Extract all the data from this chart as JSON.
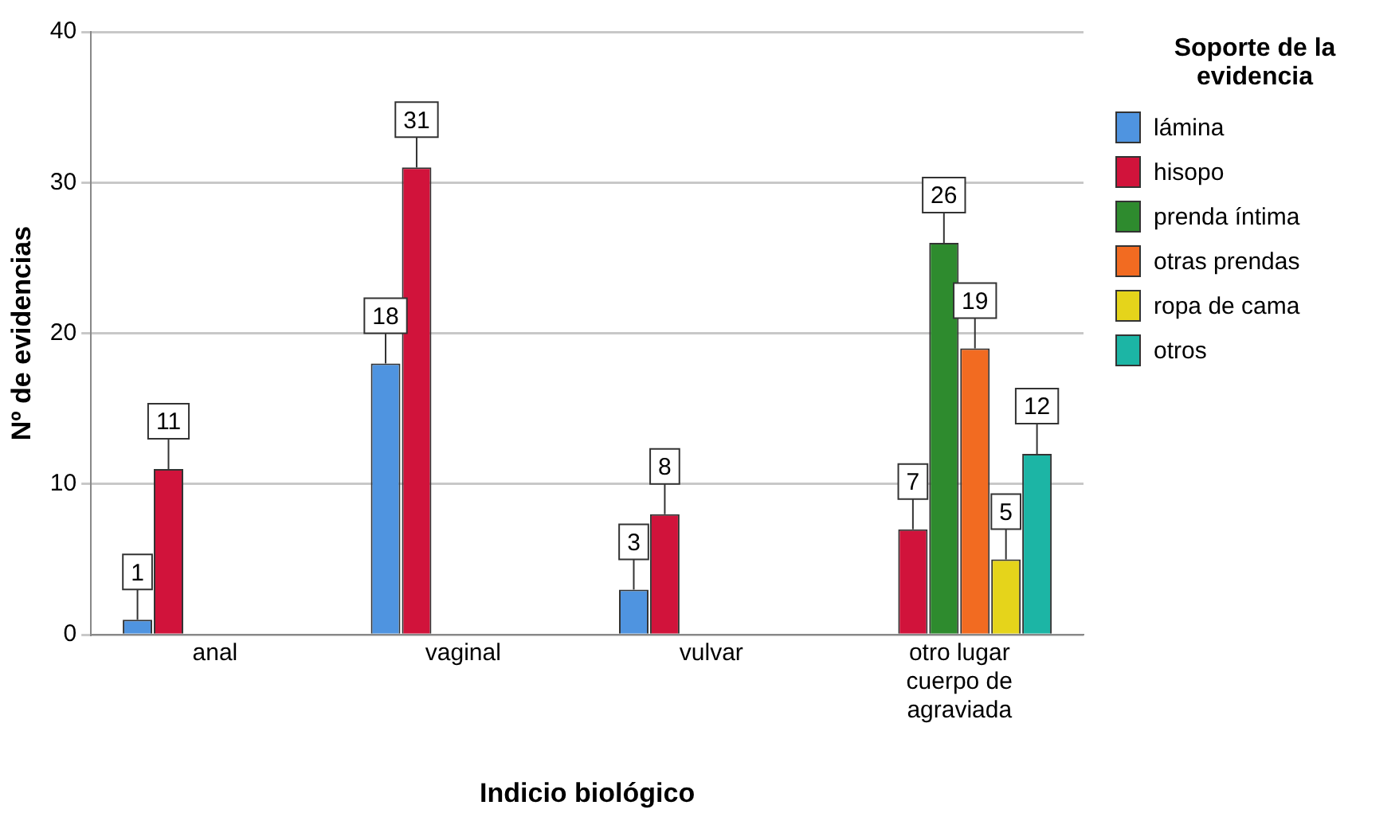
{
  "chart_data": {
    "type": "bar",
    "xlabel": "Indicio biológico",
    "ylabel": "Nº de evidencias",
    "legend_title": "Soporte de la evidencia",
    "categories": [
      "anal",
      "vaginal",
      "vulvar",
      "otro lugar cuerpo de agraviada"
    ],
    "series": [
      {
        "name": "lámina",
        "color": "#4f94e0",
        "values": [
          1,
          18,
          3,
          null
        ]
      },
      {
        "name": "hisopo",
        "color": "#d1133b",
        "values": [
          11,
          31,
          8,
          7
        ]
      },
      {
        "name": "prenda íntima",
        "color": "#2e8b2e",
        "values": [
          null,
          null,
          null,
          26
        ]
      },
      {
        "name": "otras prendas",
        "color": "#f26b21",
        "values": [
          null,
          null,
          null,
          19
        ]
      },
      {
        "name": "ropa de cama",
        "color": "#e5d41b",
        "values": [
          null,
          null,
          null,
          5
        ]
      },
      {
        "name": "otros",
        "color": "#1cb5a5",
        "values": [
          null,
          null,
          null,
          12
        ]
      }
    ],
    "ylim": [
      0,
      40
    ],
    "yticks": [
      0,
      10,
      20,
      30,
      40
    ],
    "grid": "y",
    "legend": "right",
    "data_labels": true
  }
}
